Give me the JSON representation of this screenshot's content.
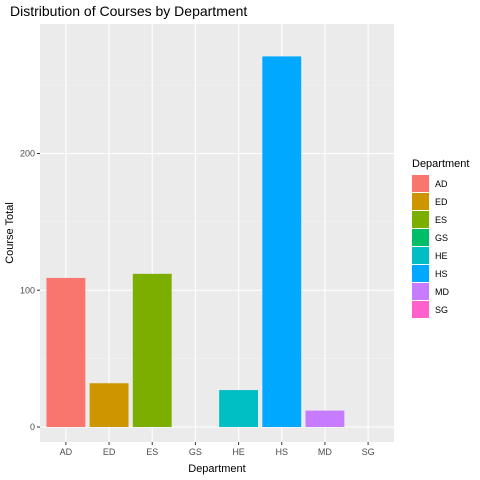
{
  "chart_data": {
    "type": "bar",
    "title": "Distribution of Courses by Department",
    "xlabel": "Department",
    "ylabel": "Course Total",
    "categories": [
      "AD",
      "ED",
      "ES",
      "GS",
      "HE",
      "HS",
      "MD",
      "SG"
    ],
    "values": [
      109,
      32,
      112,
      0,
      27,
      271,
      12,
      0
    ],
    "colors": [
      "#F8766D",
      "#CD9600",
      "#7CAE00",
      "#00BE67",
      "#00BFC4",
      "#00A9FF",
      "#C77CFF",
      "#FF61CC"
    ],
    "ylim": [
      0,
      290
    ],
    "yticks": [
      0,
      100,
      200
    ],
    "grid": true,
    "legend": {
      "title": "Department",
      "placement": "right",
      "entries": [
        "AD",
        "ED",
        "ES",
        "GS",
        "HE",
        "HS",
        "MD",
        "SG"
      ]
    }
  }
}
